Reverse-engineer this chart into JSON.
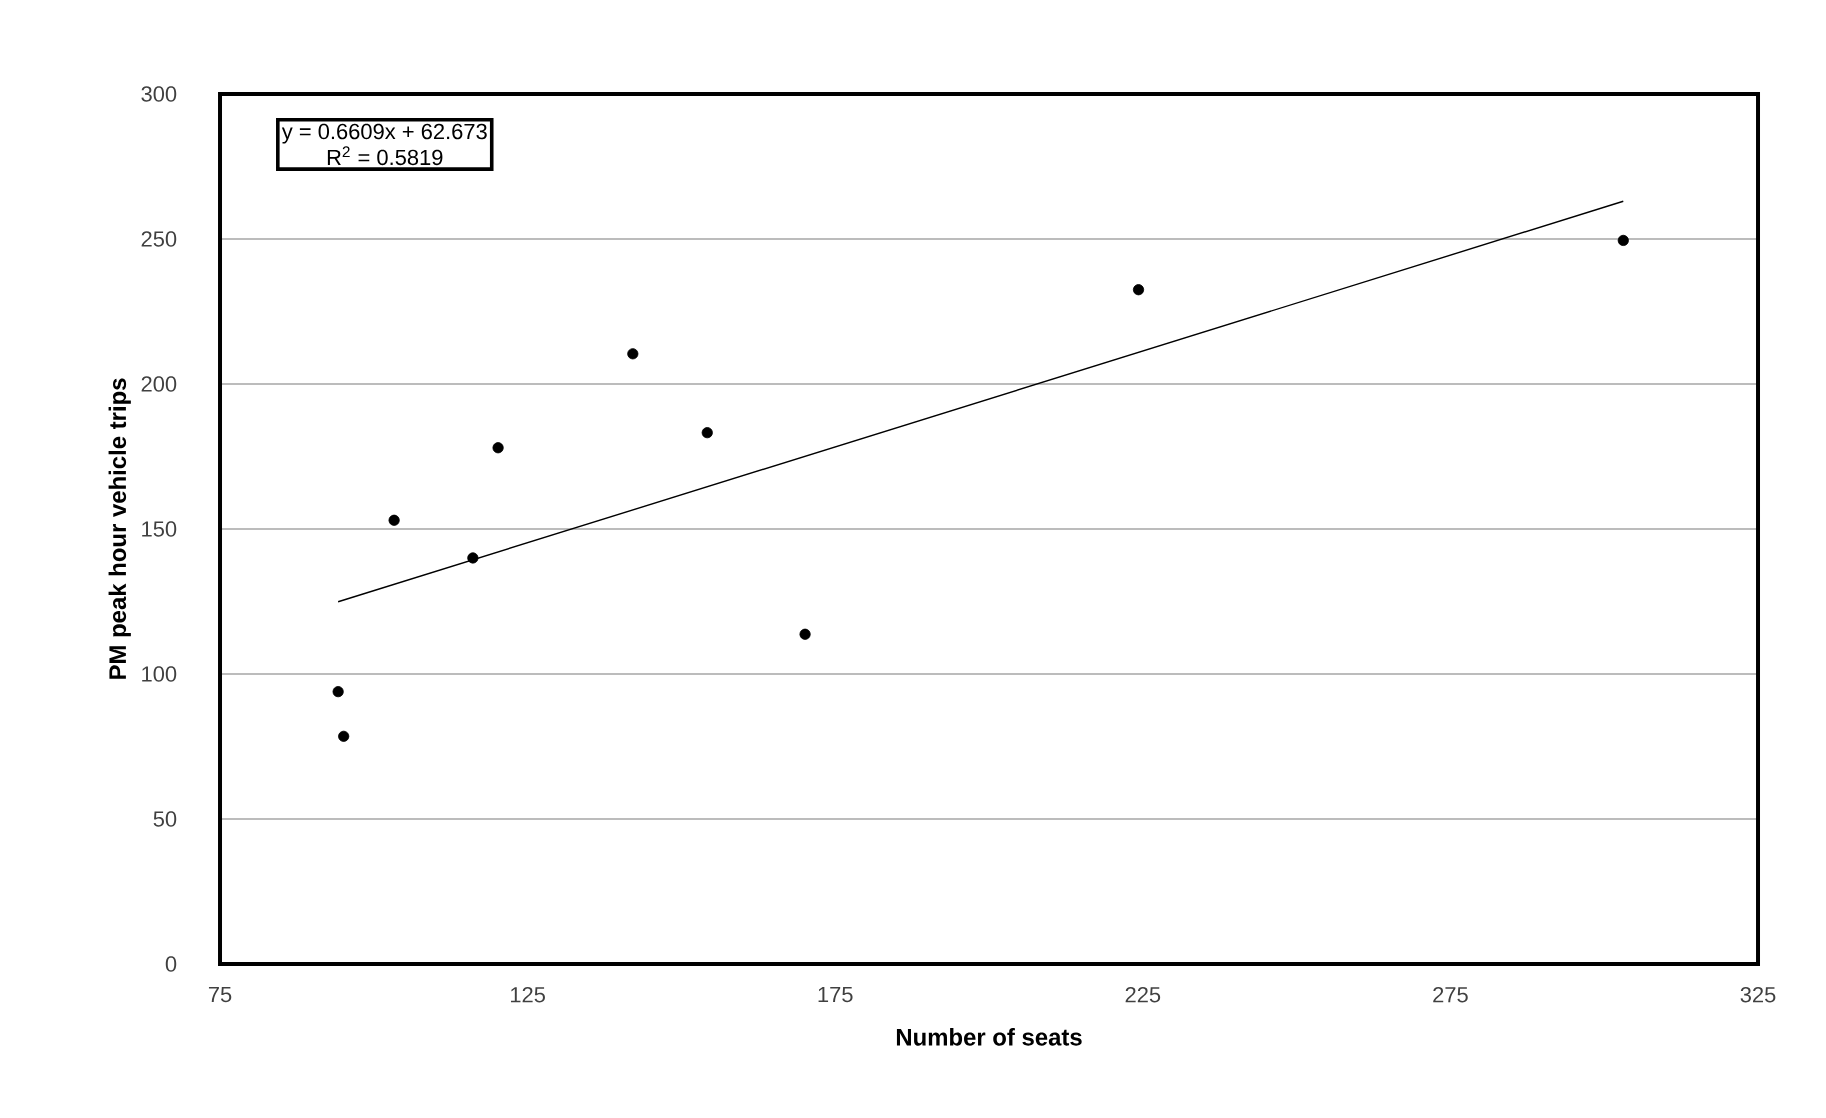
{
  "chart_data": {
    "type": "scatter",
    "xlabel": "Number of seats",
    "ylabel": "PM peak hour vehicle trips",
    "xlim": [
      75,
      325
    ],
    "ylim": [
      0,
      300
    ],
    "xticks": [
      75,
      125,
      175,
      225,
      275,
      325
    ],
    "yticks": [
      0,
      50,
      100,
      150,
      200,
      250,
      300
    ],
    "grid": "y",
    "annotations": [
      "y = 0.6609x + 62.673",
      "R$^{2}$ = 0.5819"
    ],
    "series": [
      {
        "marker": "circle",
        "color": "#000000",
        "x": [
          94.2,
          95.1,
          103.3,
          116.1,
          120.2,
          142.1,
          154.2,
          170.1,
          224.3,
          303.1
        ],
        "values": [
          93.9,
          78.5,
          153,
          140,
          178,
          210.4,
          183.2,
          113.7,
          232.5,
          249.5
        ]
      },
      {
        "type": "line",
        "marker": "none",
        "color": "#000000",
        "x": [
          94.2,
          303.1
        ],
        "values": [
          124.9,
          263.0
        ]
      }
    ]
  }
}
